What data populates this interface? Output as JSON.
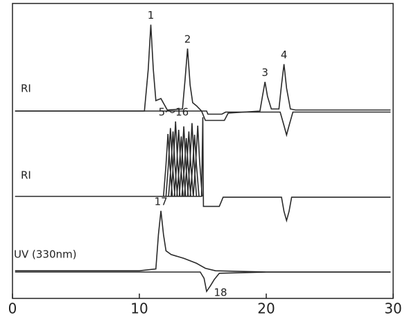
{
  "chart_data": {
    "type": "line",
    "xlim": [
      0,
      30
    ],
    "xticks": [
      0,
      10,
      20,
      30
    ],
    "color": "#2a2a2a",
    "panels": [
      {
        "label": "RI",
        "ylim": [
          -30,
          100
        ],
        "series": [
          {
            "x": [
              0.2,
              10.4,
              10.7,
              10.9,
              11.1,
              11.3,
              11.7,
              12.2,
              13.4,
              13.6,
              13.8,
              14.0,
              14.2,
              14.5,
              14.9,
              15.2,
              16.7,
              17.0,
              19.5,
              19.7,
              19.9,
              20.1,
              20.4,
              21.0,
              21.2,
              21.4,
              21.6,
              21.9,
              22.3,
              29.8
            ],
            "values": [
              0,
              0,
              40,
              83,
              40,
              10,
              12,
              1,
              2,
              30,
              60,
              25,
              8,
              5,
              0,
              -9,
              -9,
              -2,
              0,
              14,
              28,
              14,
              2,
              2,
              25,
              45,
              22,
              2,
              1,
              1
            ]
          },
          {
            "x": [
              0.2,
              15.3,
              15.4,
              16.5,
              16.8,
              21.1,
              21.4,
              21.6,
              21.8,
              22.1,
              29.8
            ],
            "values": [
              0,
              0,
              -3,
              -3,
              -1,
              -1,
              -14,
              -23,
              -14,
              -1,
              -1
            ]
          }
        ],
        "annotations": [
          {
            "text": "1",
            "x": 10.9,
            "y": 83
          },
          {
            "text": "2",
            "x": 13.8,
            "y": 60
          },
          {
            "text": "3",
            "x": 19.9,
            "y": 28
          },
          {
            "text": "4",
            "x": 21.4,
            "y": 45
          }
        ]
      },
      {
        "label": "RI",
        "ylim": [
          -30,
          100
        ],
        "series": [
          {
            "x": [
              0.2,
              12.0,
              14.9,
              15.0,
              15.05,
              16.3,
              16.6,
              21.2,
              21.4,
              21.6,
              21.8,
              22.0,
              29.8
            ],
            "values": [
              0,
              0,
              0,
              95,
              -12,
              -12,
              -1,
              -1,
              -18,
              -29,
              -18,
              -1,
              -1
            ]
          },
          {
            "x": [
              11.9,
              12.1,
              12.25,
              12.4,
              12.6
            ],
            "values": [
              0,
              38,
              75,
              38,
              0
            ]
          },
          {
            "x": [
              12.1,
              12.3,
              12.45,
              12.6,
              12.8
            ],
            "values": [
              0,
              41,
              82,
              41,
              0
            ]
          },
          {
            "x": [
              12.3,
              12.5,
              12.65,
              12.8,
              13.0
            ],
            "values": [
              0,
              39,
              78,
              39,
              0
            ]
          },
          {
            "x": [
              12.5,
              12.7,
              12.85,
              13.0,
              13.2
            ],
            "values": [
              0,
              45,
              90,
              45,
              0
            ]
          },
          {
            "x": [
              12.75,
              12.95,
              13.1,
              13.25,
              13.45
            ],
            "values": [
              0,
              40,
              80,
              40,
              0
            ]
          },
          {
            "x": [
              12.95,
              13.15,
              13.3,
              13.45,
              13.65
            ],
            "values": [
              0,
              36,
              72,
              36,
              0
            ]
          },
          {
            "x": [
              13.15,
              13.35,
              13.5,
              13.65,
              13.85
            ],
            "values": [
              0,
              42,
              84,
              42,
              0
            ]
          },
          {
            "x": [
              13.35,
              13.55,
              13.7,
              13.85,
              14.05
            ],
            "values": [
              0,
              35,
              70,
              35,
              0
            ]
          },
          {
            "x": [
              13.55,
              13.75,
              13.9,
              14.05,
              14.25
            ],
            "values": [
              0,
              39,
              78,
              39,
              0
            ]
          },
          {
            "x": [
              13.8,
              14.0,
              14.15,
              14.3,
              14.5
            ],
            "values": [
              0,
              44,
              88,
              44,
              0
            ]
          },
          {
            "x": [
              14.0,
              14.2,
              14.35,
              14.5,
              14.7
            ],
            "values": [
              0,
              37,
              74,
              37,
              0
            ]
          },
          {
            "x": [
              14.25,
              14.45,
              14.6,
              14.75,
              14.95
            ],
            "values": [
              0,
              42,
              85,
              42,
              0
            ]
          }
        ],
        "annotations": [
          {
            "text": "5～16",
            "x": 12.7,
            "y": 90
          }
        ]
      },
      {
        "label": "UV (330nm)",
        "ylim": [
          -40,
          100
        ],
        "series": [
          {
            "x": [
              0.2,
              10.0,
              11.3,
              11.5,
              11.7,
              11.9,
              12.1,
              12.5,
              13.0,
              13.5,
              14.5,
              15.2,
              16.0,
              20.0,
              29.8
            ],
            "values": [
              2,
              2,
              5,
              60,
              98,
              60,
              34,
              28,
              25,
              22,
              14,
              6,
              2,
              0,
              0
            ]
          },
          {
            "x": [
              0.2,
              14.8,
              15.1,
              15.3,
              15.6,
              15.9,
              16.3,
              20.0,
              29.8
            ],
            "values": [
              0,
              0,
              -10,
              -31,
              -22,
              -12,
              -2,
              0,
              0
            ]
          }
        ],
        "annotations": [
          {
            "text": "17",
            "x": 11.7,
            "y": 98
          },
          {
            "text": "18",
            "x": 15.3,
            "y": -31
          }
        ]
      }
    ]
  }
}
